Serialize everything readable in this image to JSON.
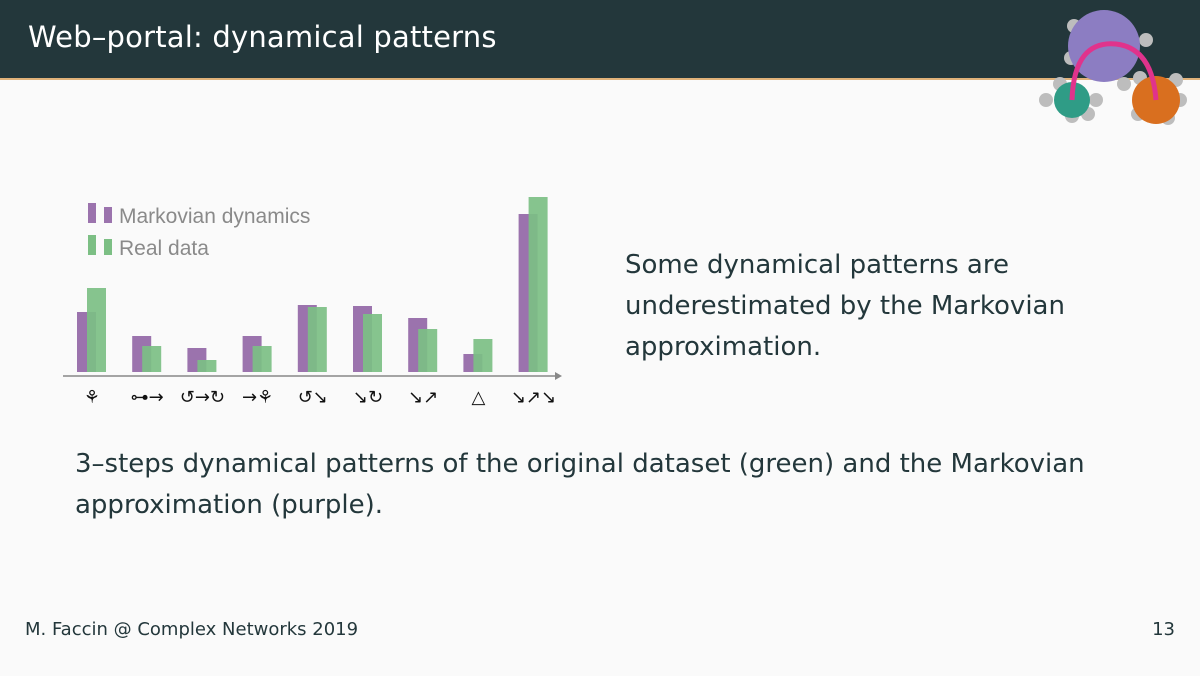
{
  "slide": {
    "title": "Web–portal: dynamical patterns",
    "side_text": "Some dynamical patterns are underestimated by the Markovian approximation.",
    "caption": "3–steps dynamical patterns of the original dataset (green) and the Markovian approximation (purple).",
    "footer_left": "M. Faccin @ Complex Networks 2019",
    "page_number": "13"
  },
  "colors": {
    "header_bg": "#23373b",
    "accent_rule": "#e0b27a",
    "markov": "#9b73ad",
    "real": "#7cbf84"
  },
  "chart_data": {
    "type": "bar",
    "categories": [
      "",
      "",
      "",
      "",
      "",
      "",
      "",
      "",
      ""
    ],
    "series": [
      {
        "name": "Markovian dynamics",
        "values": [
          60,
          36,
          24,
          36,
          67,
          66,
          54,
          18,
          158
        ]
      },
      {
        "name": "Real data",
        "values": [
          84,
          26,
          12,
          26,
          65,
          58,
          43,
          33,
          175
        ]
      }
    ],
    "xlabel": "",
    "ylabel": "",
    "ylim": [
      0,
      180
    ],
    "grid": false,
    "legend": "top-left",
    "tick_glyphs": [
      "⚘",
      "⊶→",
      "↺→↻",
      "→⚘",
      "↺↘",
      "↘↻",
      "↘↗",
      "△",
      "↘↗↘"
    ]
  }
}
